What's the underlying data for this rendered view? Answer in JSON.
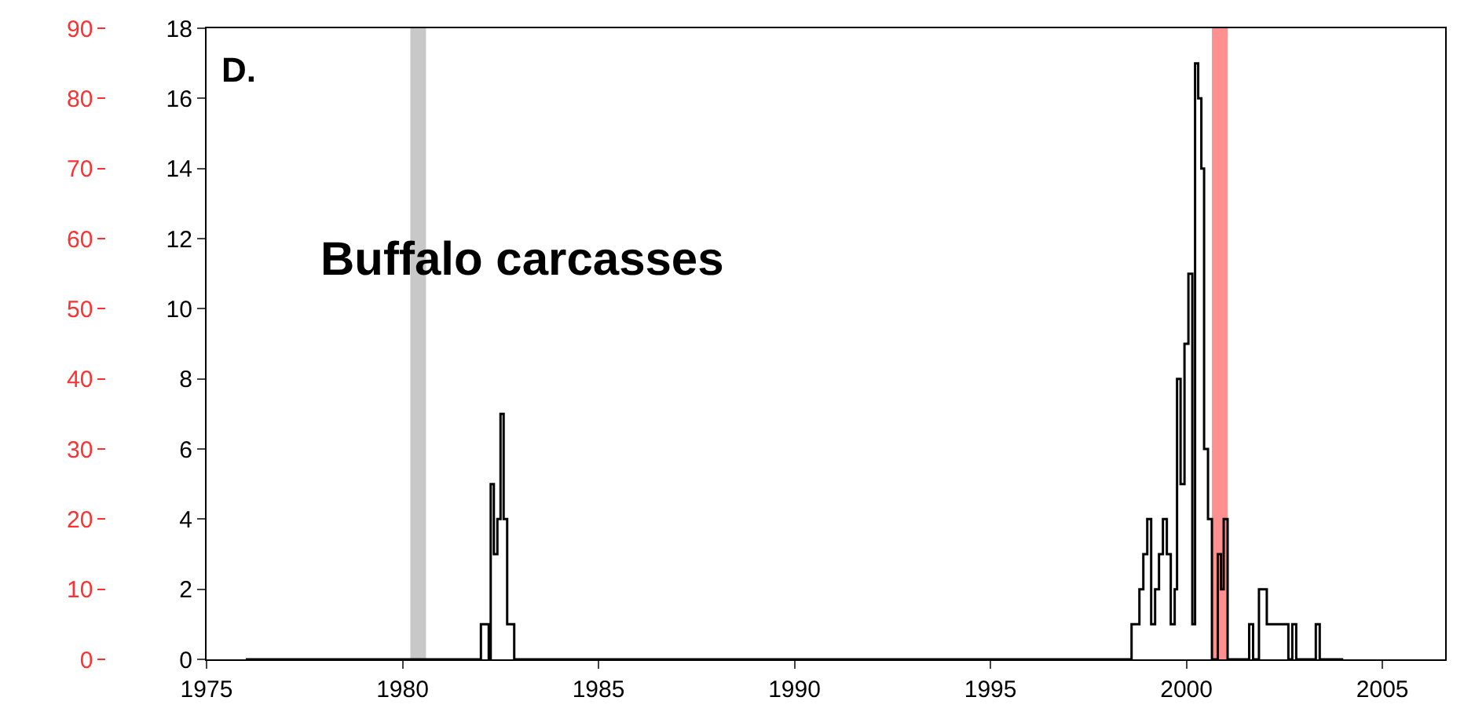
{
  "chart_data": {
    "type": "step",
    "annotations": [
      "D.",
      "Buffalo carcasses"
    ],
    "xlim": [
      1975,
      2006.6
    ],
    "xticks": [
      1975,
      1980,
      1985,
      1990,
      1995,
      2000,
      2005
    ],
    "ylim": [
      0,
      18
    ],
    "yticks": [
      0,
      2,
      4,
      6,
      8,
      10,
      12,
      14,
      16,
      18
    ],
    "y2lim": [
      0,
      90
    ],
    "y2ticks": [
      0,
      10,
      20,
      30,
      40,
      50,
      60,
      70,
      80,
      90
    ],
    "series": [
      {
        "color": "#000000",
        "x": [
          1976,
          1981.9,
          1982.0,
          1982.1,
          1982.2,
          1982.25,
          1982.33,
          1982.42,
          1982.5,
          1982.58,
          1982.67,
          1982.75,
          1982.85,
          1983.0,
          1983.8,
          1998.5,
          1998.6,
          1998.7,
          1998.8,
          1998.9,
          1999.0,
          1999.1,
          1999.2,
          1999.3,
          1999.4,
          1999.5,
          1999.6,
          1999.7,
          1999.76,
          1999.85,
          1999.95,
          2000.05,
          2000.15,
          2000.22,
          2000.3,
          2000.38,
          2000.45,
          2000.55,
          2000.65,
          2000.8,
          2000.88,
          2000.95,
          2001.05,
          2001.5,
          2001.6,
          2001.7,
          2001.85,
          2001.95,
          2002.05,
          2002.6,
          2002.7,
          2002.8,
          2003.2,
          2003.3,
          2003.4,
          2003.6,
          2003.7,
          2004.0
        ],
        "values": [
          0,
          0,
          1,
          1,
          0,
          5,
          3,
          4,
          7,
          4,
          1,
          1,
          0,
          0,
          0,
          0,
          1,
          1,
          2,
          3,
          4,
          1,
          2,
          3,
          4,
          3,
          1,
          2,
          8,
          5,
          9,
          11,
          1,
          17,
          16,
          14,
          6,
          4,
          0,
          3,
          2,
          4,
          0,
          0,
          1,
          0,
          2,
          2,
          1,
          0,
          1,
          0,
          0,
          1,
          0,
          0,
          0,
          0
        ]
      }
    ],
    "bands": [
      {
        "axis": "x",
        "from": 1980.2,
        "to": 1980.6,
        "color": "#c8c8c8"
      },
      {
        "axis": "x",
        "from": 2000.65,
        "to": 2001.05,
        "color": "#ff9090"
      }
    ],
    "grid": false,
    "legend": false
  }
}
